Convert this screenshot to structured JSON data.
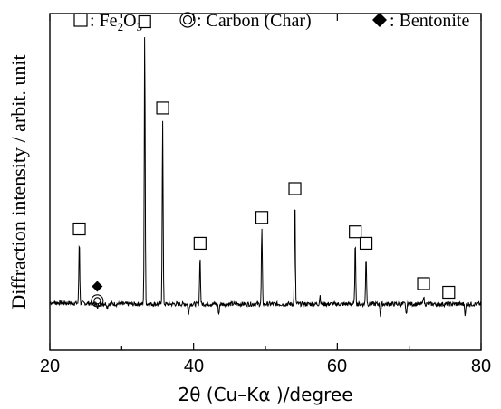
{
  "chart_data": {
    "type": "line",
    "title": "",
    "xlabel": "2θ (Cu–Kα )/degree",
    "ylabel": "Diffraction intensity / arbit. unit",
    "xlim": [
      20,
      80
    ],
    "ylim": [
      0,
      100
    ],
    "xticks": [
      20,
      40,
      60,
      80
    ],
    "y_tick_labels_shown": false,
    "grid": false,
    "legend": {
      "placement": "top",
      "entries": [
        {
          "marker": "open-square",
          "label_main": "Fe",
          "sub1": "2",
          "mid": "O",
          "sub2": "3",
          "label": "Fe2O3"
        },
        {
          "marker": "double-circle",
          "label": "Carbon (Char)"
        },
        {
          "marker": "filled-diamond",
          "label": "Bentonite"
        }
      ],
      "separator": ": "
    },
    "series": [
      {
        "baseline": 6,
        "peaks": [
          {
            "x": 24.1,
            "y": 28,
            "marker": "open-square"
          },
          {
            "x": 26.6,
            "y": 4,
            "marker": "double-circle"
          },
          {
            "x": 26.6,
            "y": 9,
            "marker": "filled-diamond"
          },
          {
            "x": 28.0,
            "y": 4.5
          },
          {
            "x": 33.2,
            "y": 100,
            "marker": "open-square"
          },
          {
            "x": 35.7,
            "y": 70,
            "marker": "open-square"
          },
          {
            "x": 39.3,
            "y": 2
          },
          {
            "x": 40.9,
            "y": 23,
            "marker": "open-square"
          },
          {
            "x": 43.5,
            "y": 2
          },
          {
            "x": 49.5,
            "y": 32,
            "marker": "open-square"
          },
          {
            "x": 54.1,
            "y": 42,
            "marker": "open-square"
          },
          {
            "x": 57.6,
            "y": 9
          },
          {
            "x": 62.5,
            "y": 27,
            "marker": "open-square"
          },
          {
            "x": 64.0,
            "y": 23,
            "marker": "open-square"
          },
          {
            "x": 66.0,
            "y": 2
          },
          {
            "x": 69.6,
            "y": 2
          },
          {
            "x": 72.0,
            "y": 9,
            "marker": "open-square"
          },
          {
            "x": 75.5,
            "y": 6,
            "marker": "open-square"
          },
          {
            "x": 77.8,
            "y": 2
          }
        ]
      }
    ]
  }
}
